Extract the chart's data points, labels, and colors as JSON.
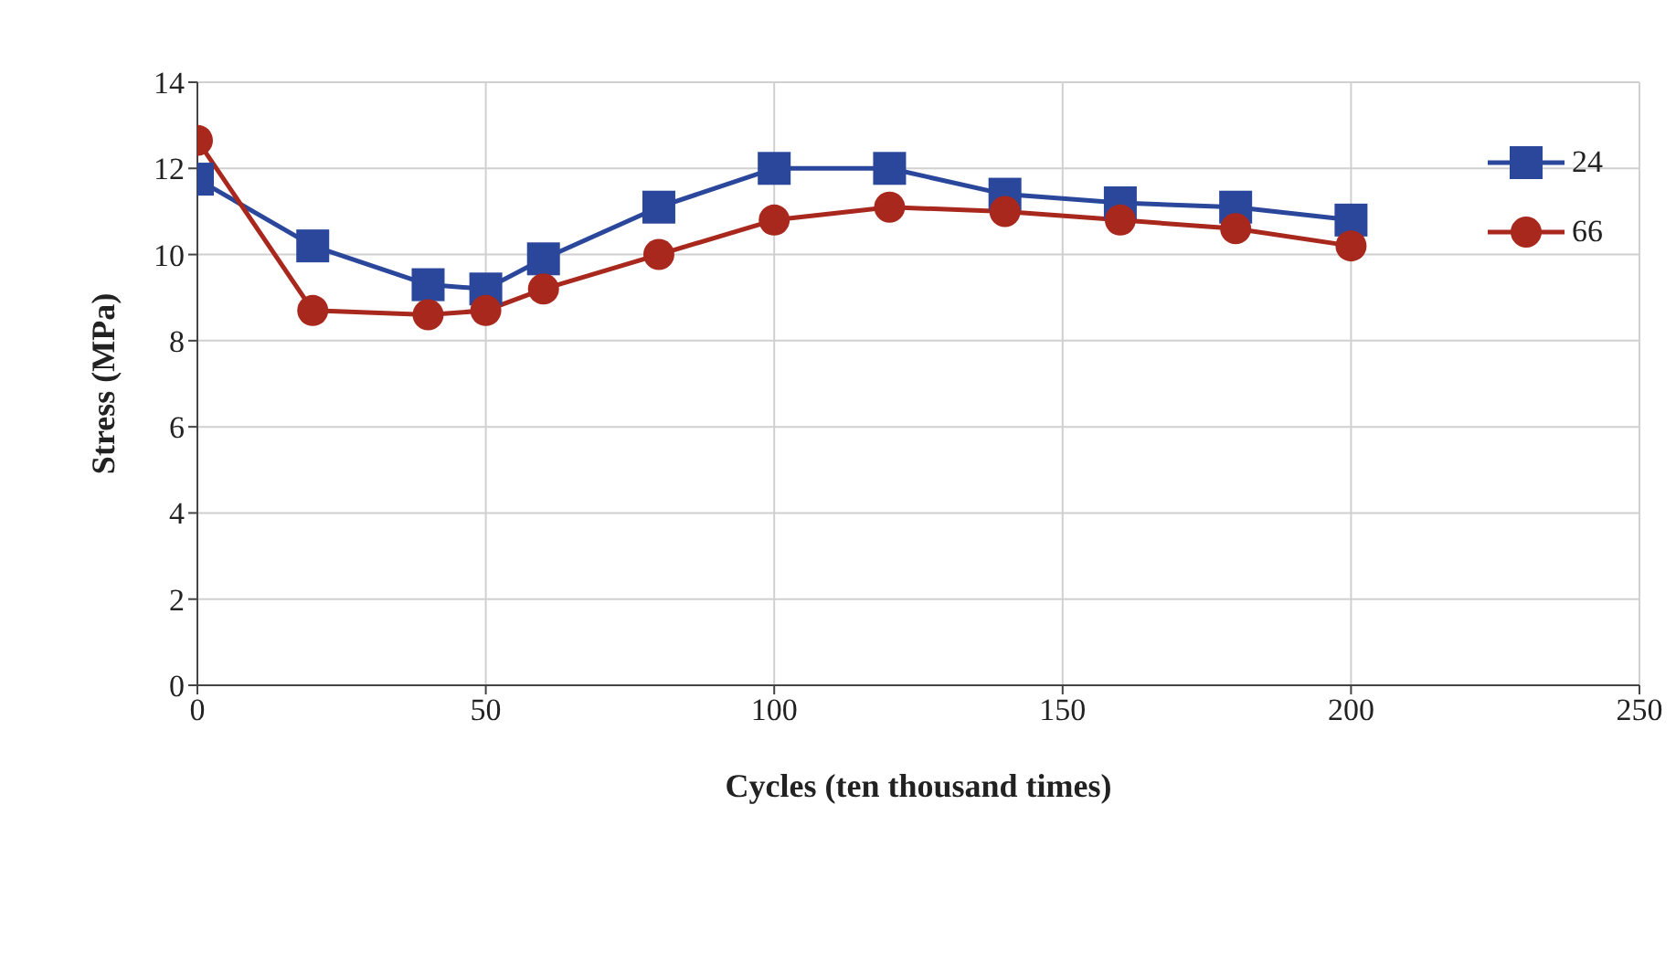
{
  "chart_data": {
    "type": "line",
    "xlabel": "Cycles (ten thousand times)",
    "ylabel": "Stress (MPa)",
    "x": [
      0,
      20,
      40,
      50,
      60,
      80,
      100,
      120,
      140,
      160,
      180,
      200
    ],
    "series": [
      {
        "name": "24",
        "color": "#2a479b",
        "marker": "square",
        "values": [
          11.75,
          10.2,
          9.3,
          9.2,
          9.9,
          11.1,
          12.0,
          12.0,
          11.4,
          11.2,
          11.1,
          10.8
        ]
      },
      {
        "name": "66",
        "color": "#a8281e",
        "marker": "circle",
        "values": [
          12.65,
          8.7,
          8.6,
          8.7,
          9.2,
          10.0,
          10.8,
          11.1,
          11.0,
          10.8,
          10.6,
          10.2
        ]
      }
    ],
    "xlim": [
      0,
      250
    ],
    "xticks": [
      0,
      50,
      100,
      150,
      200,
      250
    ],
    "ylim": [
      0,
      14
    ],
    "yticks": [
      0,
      2,
      4,
      6,
      8,
      10,
      12,
      14
    ],
    "grid": true,
    "legend": "top right",
    "line_style": "solid"
  }
}
